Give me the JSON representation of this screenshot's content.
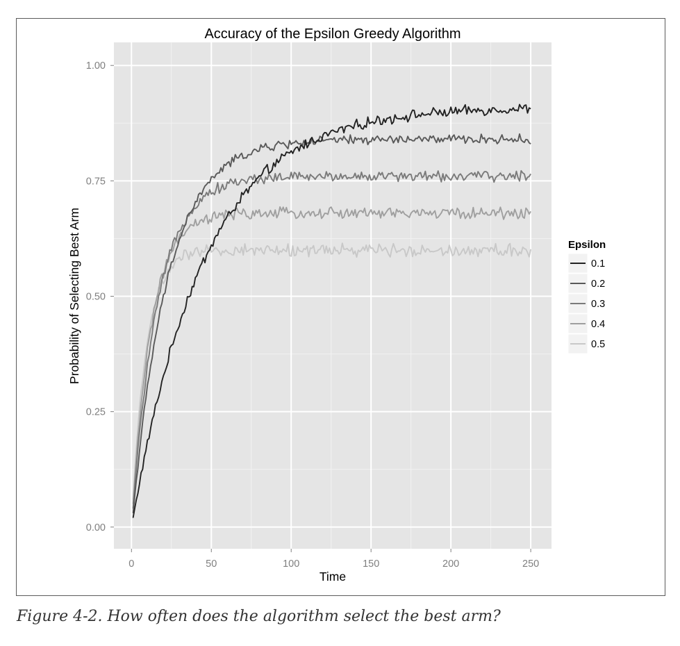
{
  "figure": {
    "caption": "Figure 4-2. How often does the algorithm select the best arm?"
  },
  "chart_data": {
    "type": "line",
    "title": "Accuracy of the Epsilon Greedy Algorithm",
    "xlabel": "Time",
    "ylabel": "Probability of Selecting Best Arm",
    "xlim": [
      -11,
      263
    ],
    "ylim": [
      -0.047,
      1.05
    ],
    "x_ticks": [
      0,
      50,
      100,
      150,
      200,
      250
    ],
    "x_tick_labels": [
      "0",
      "50",
      "100",
      "150",
      "200",
      "250"
    ],
    "y_ticks": [
      0,
      0.25,
      0.5,
      0.75,
      1.0
    ],
    "y_tick_labels": [
      "0.00",
      "0.25",
      "0.50",
      "0.75",
      "1.00"
    ],
    "grid": true,
    "legend": {
      "title": "Epsilon",
      "position": "right"
    },
    "x_range": [
      1,
      250
    ],
    "series": [
      {
        "name": "0.1",
        "color": "#222222",
        "start": 0.02,
        "plateau": 0.91,
        "tau": 45,
        "noise": 0.009,
        "points": [
          [
            1,
            0.02
          ],
          [
            10,
            0.19
          ],
          [
            20,
            0.33
          ],
          [
            30,
            0.44
          ],
          [
            40,
            0.53
          ],
          [
            50,
            0.6
          ],
          [
            60,
            0.66
          ],
          [
            75,
            0.72
          ],
          [
            100,
            0.79
          ],
          [
            125,
            0.83
          ],
          [
            150,
            0.86
          ],
          [
            175,
            0.88
          ],
          [
            200,
            0.9
          ],
          [
            225,
            0.91
          ],
          [
            250,
            0.91
          ]
        ]
      },
      {
        "name": "0.2",
        "color": "#595959",
        "start": 0.03,
        "plateau": 0.84,
        "tau": 22,
        "noise": 0.008,
        "points": [
          [
            1,
            0.03
          ],
          [
            10,
            0.27
          ],
          [
            20,
            0.47
          ],
          [
            30,
            0.6
          ],
          [
            40,
            0.68
          ],
          [
            50,
            0.73
          ],
          [
            60,
            0.77
          ],
          [
            75,
            0.8
          ],
          [
            100,
            0.82
          ],
          [
            125,
            0.83
          ],
          [
            150,
            0.84
          ],
          [
            200,
            0.84
          ],
          [
            250,
            0.84
          ]
        ]
      },
      {
        "name": "0.3",
        "color": "#7a7a7a",
        "start": 0.04,
        "plateau": 0.76,
        "tau": 16,
        "noise": 0.009,
        "points": [
          [
            1,
            0.04
          ],
          [
            10,
            0.35
          ],
          [
            20,
            0.55
          ],
          [
            30,
            0.64
          ],
          [
            40,
            0.69
          ],
          [
            50,
            0.72
          ],
          [
            75,
            0.75
          ],
          [
            100,
            0.76
          ],
          [
            150,
            0.76
          ],
          [
            200,
            0.76
          ],
          [
            250,
            0.76
          ]
        ]
      },
      {
        "name": "0.4",
        "color": "#9f9f9f",
        "start": 0.05,
        "plateau": 0.68,
        "tau": 12,
        "noise": 0.01,
        "points": [
          [
            1,
            0.05
          ],
          [
            10,
            0.4
          ],
          [
            20,
            0.56
          ],
          [
            30,
            0.63
          ],
          [
            40,
            0.66
          ],
          [
            50,
            0.67
          ],
          [
            75,
            0.68
          ],
          [
            100,
            0.68
          ],
          [
            150,
            0.68
          ],
          [
            200,
            0.68
          ],
          [
            250,
            0.68
          ]
        ]
      },
      {
        "name": "0.5",
        "color": "#c8c8c8",
        "start": 0.06,
        "plateau": 0.6,
        "tau": 9,
        "noise": 0.011,
        "points": [
          [
            1,
            0.06
          ],
          [
            10,
            0.43
          ],
          [
            20,
            0.55
          ],
          [
            30,
            0.58
          ],
          [
            40,
            0.59
          ],
          [
            50,
            0.6
          ],
          [
            100,
            0.6
          ],
          [
            150,
            0.6
          ],
          [
            200,
            0.6
          ],
          [
            250,
            0.6
          ]
        ]
      }
    ]
  }
}
